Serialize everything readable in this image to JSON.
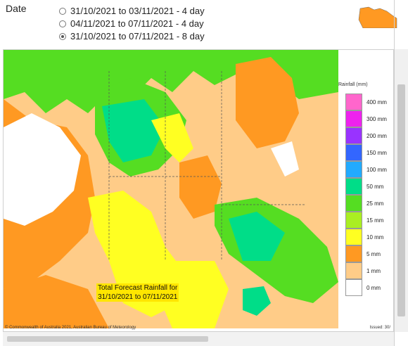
{
  "date_selector": {
    "label": "Date",
    "options": [
      {
        "label": "31/10/2021 to 03/11/2021 - 4 day",
        "selected": false
      },
      {
        "label": "04/11/2021 to 07/11/2021 - 4 day",
        "selected": false
      },
      {
        "label": "31/10/2021 to 07/11/2021 - 8 day",
        "selected": true
      }
    ]
  },
  "map": {
    "caption_line1": "Total Forecast Rainfall for",
    "caption_line2": "31/10/2021 to 07/11/2021",
    "footer_left": "© Commonwealth of Australia 2021, Australian Bureau of Meteorology",
    "footer_right": "Issued: 30/"
  },
  "legend": {
    "title": "Rainfall (mm)",
    "items": [
      {
        "label": "400 mm",
        "color": "#ff66cc"
      },
      {
        "label": "300 mm",
        "color": "#ee22ee"
      },
      {
        "label": "200 mm",
        "color": "#9933ff"
      },
      {
        "label": "150 mm",
        "color": "#3366ff"
      },
      {
        "label": "100 mm",
        "color": "#22aaff"
      },
      {
        "label": "50 mm",
        "color": "#00dd88"
      },
      {
        "label": "25 mm",
        "color": "#55dd22"
      },
      {
        "label": "15 mm",
        "color": "#aaee22"
      },
      {
        "label": "10 mm",
        "color": "#ffff22"
      },
      {
        "label": "5 mm",
        "color": "#ff9922"
      },
      {
        "label": "1 mm",
        "color": "#ffcc88"
      },
      {
        "label": "0 mm",
        "color": "#ffffff"
      }
    ]
  }
}
